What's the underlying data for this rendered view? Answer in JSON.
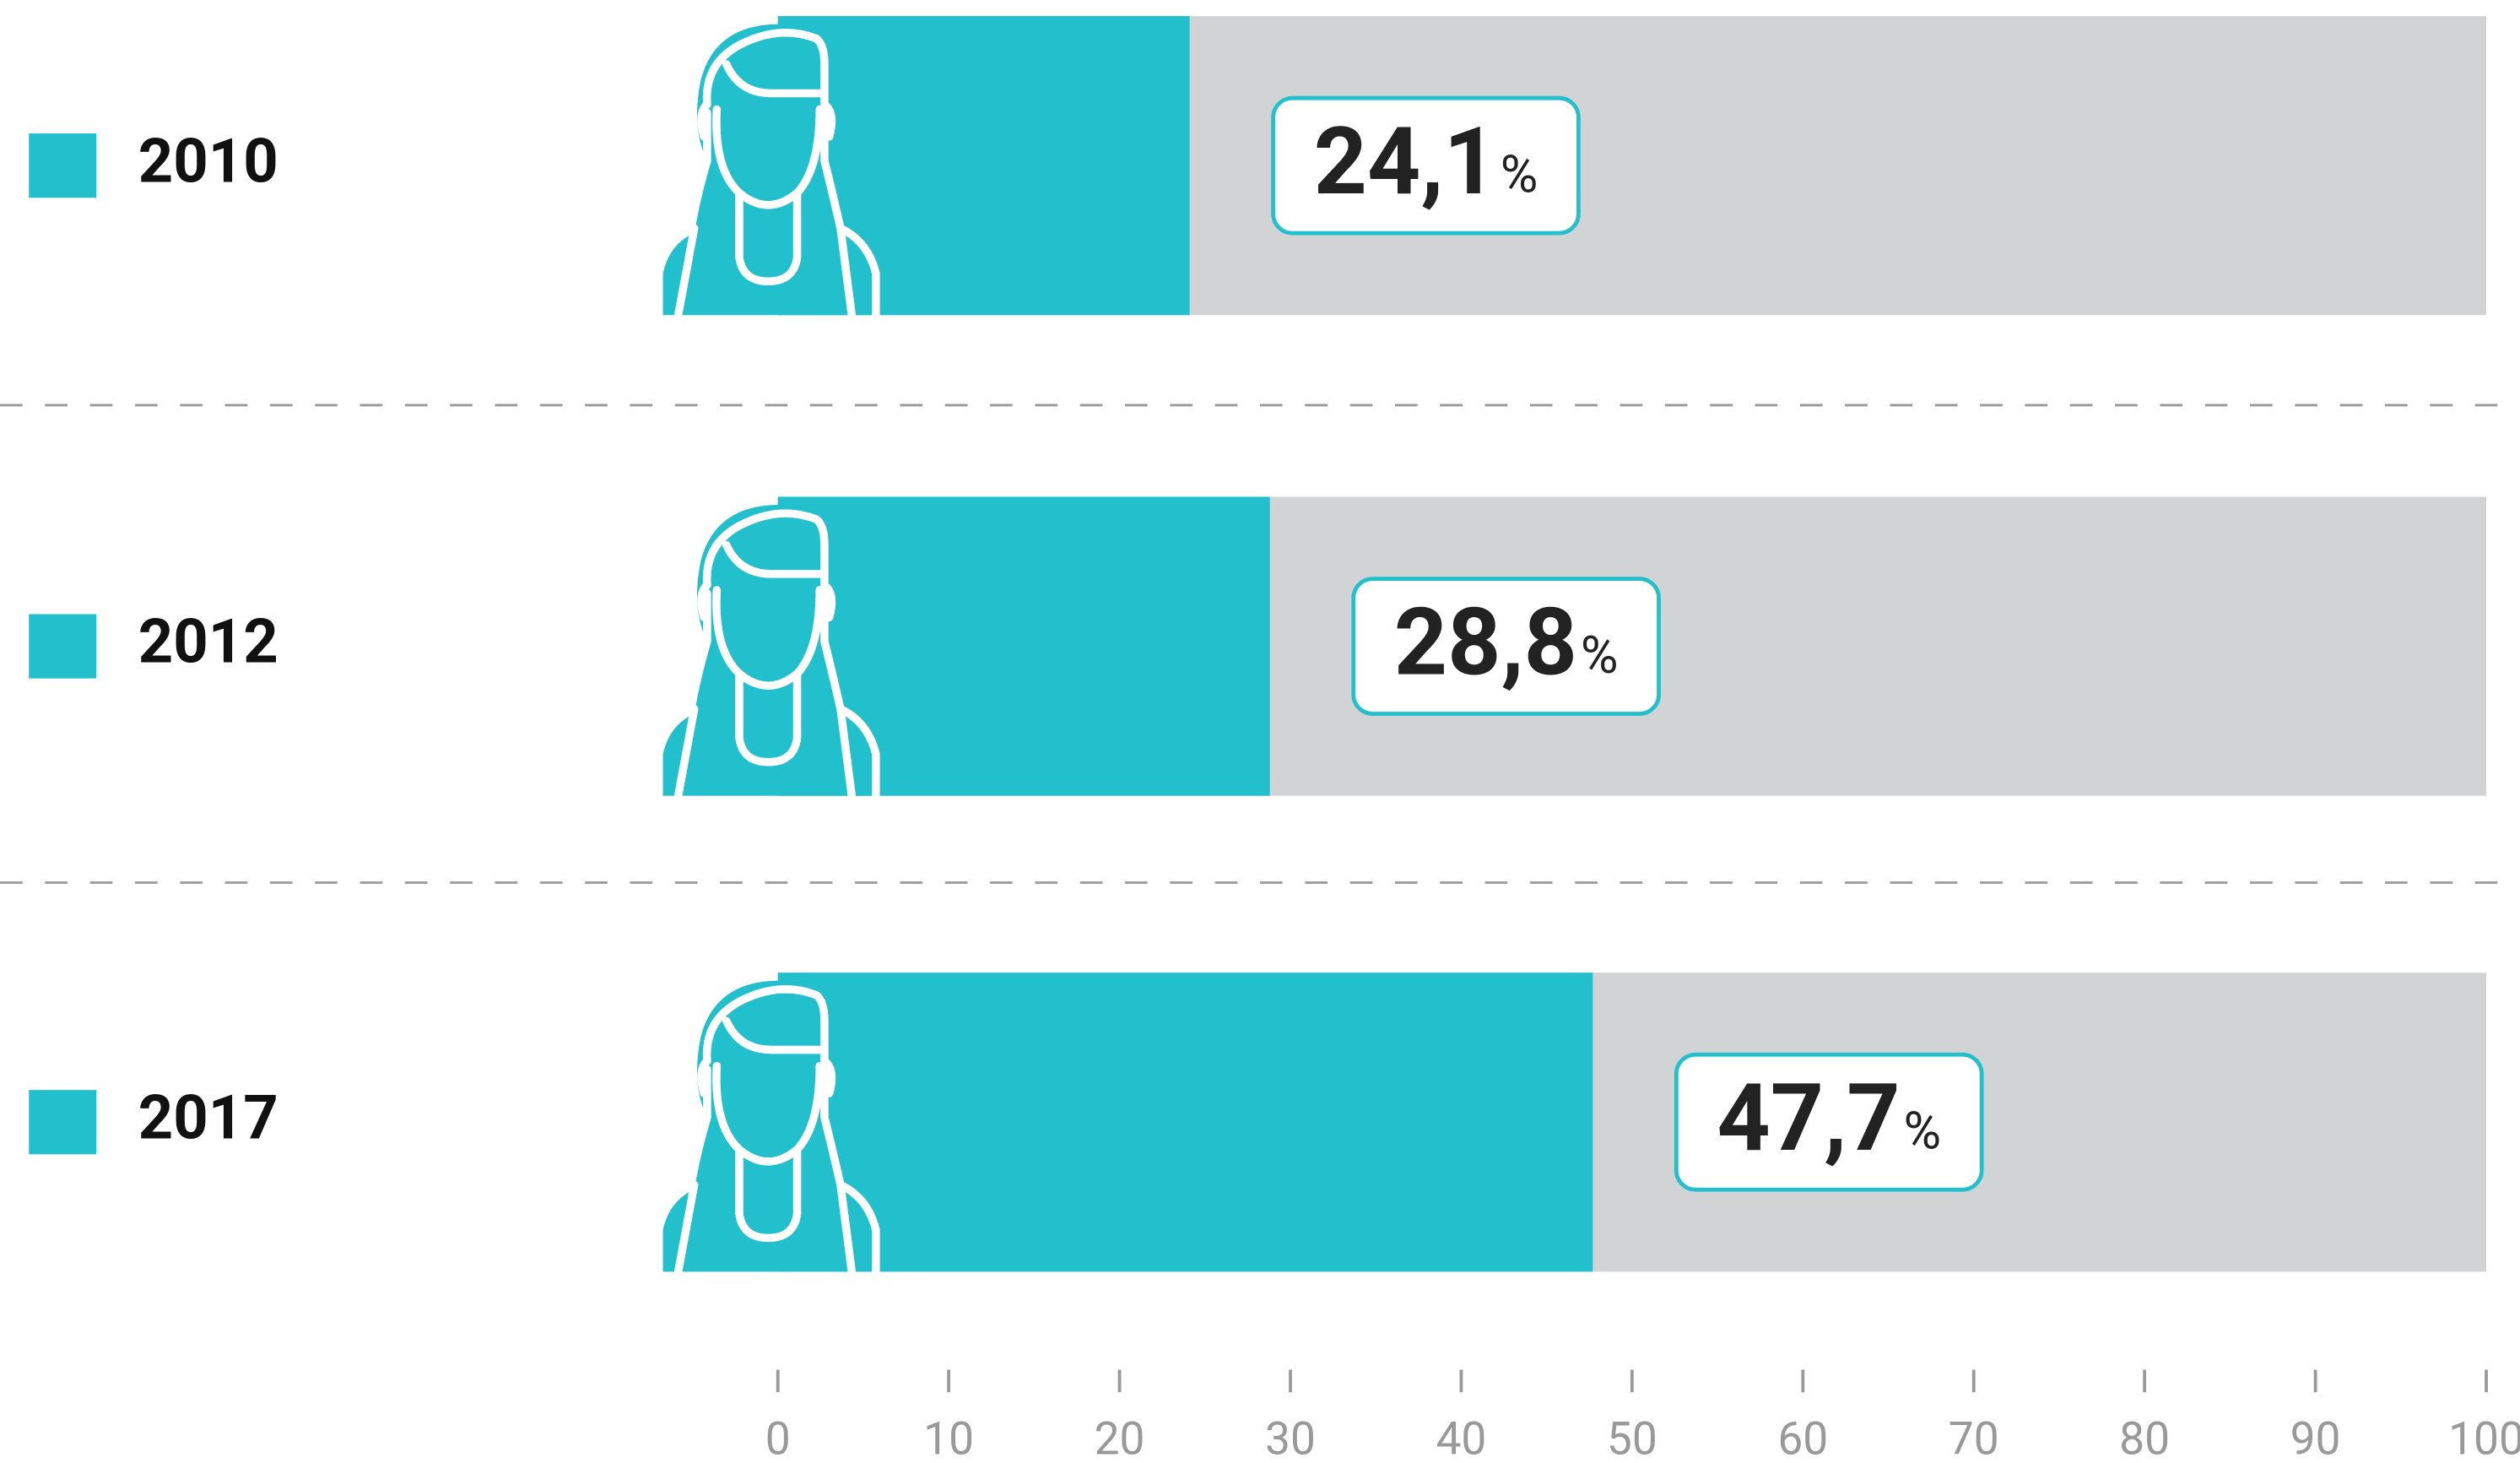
{
  "chart_data": {
    "type": "bar",
    "orientation": "horizontal",
    "categories": [
      "2010",
      "2012",
      "2017"
    ],
    "values": [
      24.1,
      28.8,
      47.7
    ],
    "value_labels": [
      "24,1",
      "28,8",
      "47,7"
    ],
    "value_unit": "%",
    "color": "#22bfcc",
    "track_color": "#d1d3d4",
    "xlim": [
      0,
      100
    ],
    "xticks": [
      0,
      10,
      20,
      30,
      40,
      50,
      60,
      70,
      80,
      90,
      100
    ]
  }
}
